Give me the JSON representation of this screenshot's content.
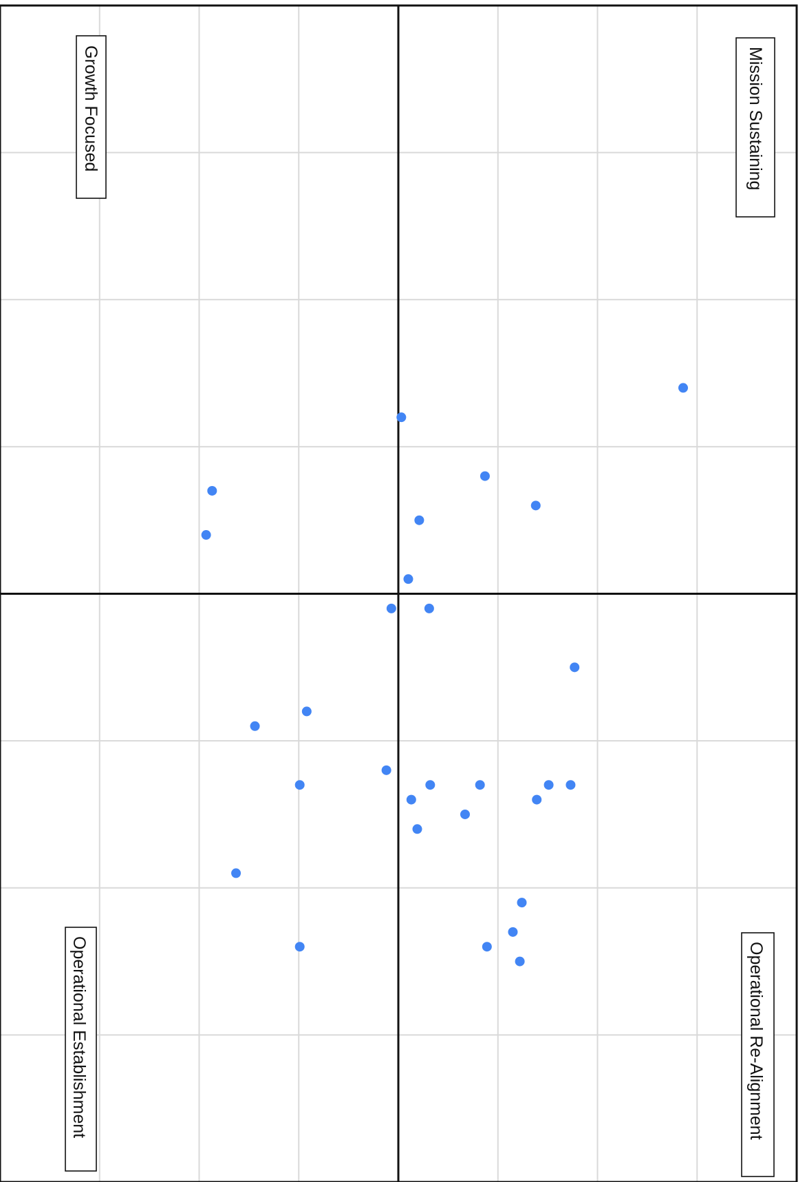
{
  "chart_data": {
    "type": "scatter",
    "title": "",
    "xlabel": "",
    "ylabel": "",
    "xlim": [
      0,
      8
    ],
    "ylim": [
      0,
      8
    ],
    "grid": true,
    "quadrant_split": {
      "x": 4,
      "y": 4
    },
    "quadrant_labels": {
      "top_right": "Mission Sustaining",
      "top_left": "Growth Focused",
      "bottom_right": "Operational Re-Alignment",
      "bottom_left": "Operational Establishment"
    },
    "series": [
      {
        "points": [
          [
            2.6,
            6.86
          ],
          [
            5.4,
            5.39
          ],
          [
            5.5,
            4.67
          ],
          [
            5.3,
            4.82
          ],
          [
            5.3,
            4.32
          ],
          [
            5.4,
            4.13
          ],
          [
            4.5,
            5.77
          ],
          [
            3.4,
            5.38
          ],
          [
            3.2,
            4.87
          ],
          [
            3.5,
            4.21
          ],
          [
            2.8,
            4.03
          ],
          [
            6.5,
            5.22
          ],
          [
            5.3,
            5.73
          ],
          [
            6.1,
            5.24
          ],
          [
            6.3,
            5.15
          ],
          [
            5.6,
            4.19
          ],
          [
            6.4,
            4.89
          ],
          [
            5.3,
            5.51
          ],
          [
            4.1,
            4.31
          ],
          [
            3.9,
            4.1
          ],
          [
            4.8,
            3.08
          ],
          [
            5.3,
            3.01
          ],
          [
            6.4,
            3.01
          ],
          [
            4.9,
            2.56
          ],
          [
            5.2,
            3.88
          ],
          [
            4.1,
            3.93
          ],
          [
            3.3,
            2.13
          ],
          [
            5.9,
            2.37
          ],
          [
            3.6,
            2.07
          ]
        ]
      }
    ]
  },
  "colors": {
    "point": "#4285f4",
    "grid": "#d9d9d9",
    "axis": "#111111"
  }
}
